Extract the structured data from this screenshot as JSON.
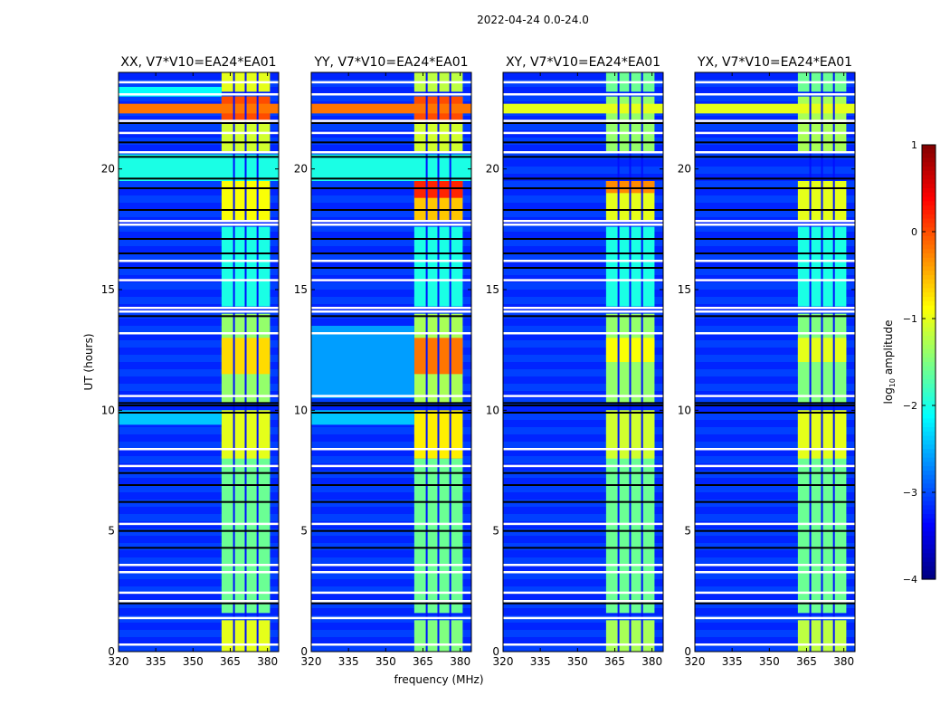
{
  "chart_data": {
    "type": "heatmap",
    "title": "2022-04-24 0.0-24.0",
    "xlabel": "frequency (MHz)",
    "ylabel": "UT (hours)",
    "xlim": [
      320,
      384.5
    ],
    "ylim": [
      0,
      24
    ],
    "xticks": [
      320,
      335,
      350,
      365,
      380
    ],
    "yticks": [
      0,
      5,
      10,
      15,
      20
    ],
    "colorbar": {
      "label_main": "log",
      "label_sub": "10",
      "label_rest": " amplitude",
      "range": [
        -4,
        1
      ],
      "ticks": [
        1,
        0,
        -1,
        -2,
        -3,
        -4
      ],
      "colormap": "jet"
    },
    "background_log_amplitude": -3.2,
    "panels": [
      {
        "title": "XX, V7*V10=EA24*EA01",
        "segments": [
          {
            "t": [
              0,
              1.3
            ],
            "f": [
              361.5,
              381
            ],
            "v": -1.0
          },
          {
            "t": [
              1.6,
              10.0
            ],
            "f": [
              361.5,
              381
            ],
            "v": -1.6
          },
          {
            "t": [
              8.0,
              10.0
            ],
            "f": [
              361.5,
              381
            ],
            "v": -1.0
          },
          {
            "t": [
              10.3,
              14.0
            ],
            "f": [
              361.5,
              381
            ],
            "v": -1.4
          },
          {
            "t": [
              11.5,
              13.0
            ],
            "f": [
              361.5,
              381
            ],
            "v": -0.7
          },
          {
            "t": [
              14.3,
              17.6
            ],
            "f": [
              361.5,
              381
            ],
            "v": -2.0
          },
          {
            "t": [
              17.8,
              19.5
            ],
            "f": [
              361.5,
              381
            ],
            "v": -0.9
          },
          {
            "t": [
              19.5,
              20.6
            ],
            "f": [
              320,
              384.5
            ],
            "v": -2.0
          },
          {
            "t": [
              20.7,
              23.0
            ],
            "f": [
              361.5,
              381
            ],
            "v": -1.1
          },
          {
            "t": [
              22.0,
              23.0
            ],
            "f": [
              361.5,
              381
            ],
            "v": 0.0
          },
          {
            "t": [
              22.3,
              22.7
            ],
            "f": [
              320,
              384.5
            ],
            "v": -0.2
          },
          {
            "t": [
              23.2,
              24.0
            ],
            "f": [
              361.5,
              381
            ],
            "v": -1.0
          },
          {
            "t": [
              9.4,
              10.0
            ],
            "f": [
              320,
              361.5
            ],
            "v": -2.4
          },
          {
            "t": [
              23.0,
              23.4
            ],
            "f": [
              320,
              361.5
            ],
            "v": -2.1
          }
        ]
      },
      {
        "title": "YY, V7*V10=EA24*EA01",
        "segments": [
          {
            "t": [
              0,
              1.3
            ],
            "f": [
              361.5,
              381
            ],
            "v": -1.5
          },
          {
            "t": [
              1.6,
              8.0
            ],
            "f": [
              361.5,
              381
            ],
            "v": -1.6
          },
          {
            "t": [
              8.0,
              10.0
            ],
            "f": [
              361.5,
              381
            ],
            "v": -0.8
          },
          {
            "t": [
              10.3,
              14.0
            ],
            "f": [
              361.5,
              381
            ],
            "v": -1.3
          },
          {
            "t": [
              11.5,
              13.0
            ],
            "f": [
              361.5,
              381
            ],
            "v": -0.2
          },
          {
            "t": [
              14.3,
              17.6
            ],
            "f": [
              361.5,
              381
            ],
            "v": -2.0
          },
          {
            "t": [
              17.8,
              19.5
            ],
            "f": [
              361.5,
              381
            ],
            "v": -0.6
          },
          {
            "t": [
              18.8,
              19.5
            ],
            "f": [
              361.5,
              381
            ],
            "v": 0.2
          },
          {
            "t": [
              19.5,
              20.6
            ],
            "f": [
              320,
              384.5
            ],
            "v": -2.0
          },
          {
            "t": [
              20.7,
              23.0
            ],
            "f": [
              361.5,
              381
            ],
            "v": -1.1
          },
          {
            "t": [
              22.0,
              23.0
            ],
            "f": [
              361.5,
              381
            ],
            "v": 0.0
          },
          {
            "t": [
              22.3,
              22.7
            ],
            "f": [
              320,
              384.5
            ],
            "v": -0.2
          },
          {
            "t": [
              23.2,
              24.0
            ],
            "f": [
              361.5,
              381
            ],
            "v": -1.2
          },
          {
            "t": [
              9.4,
              10.0
            ],
            "f": [
              320,
              361.5
            ],
            "v": -2.4
          },
          {
            "t": [
              10.5,
              13.5
            ],
            "f": [
              320,
              361.5
            ],
            "v": -2.6
          }
        ]
      },
      {
        "title": "XY, V7*V10=EA24*EA01",
        "segments": [
          {
            "t": [
              0,
              1.3
            ],
            "f": [
              361.5,
              381
            ],
            "v": -1.3
          },
          {
            "t": [
              1.6,
              10.0
            ],
            "f": [
              361.5,
              381
            ],
            "v": -1.6
          },
          {
            "t": [
              8.0,
              10.0
            ],
            "f": [
              361.5,
              381
            ],
            "v": -1.1
          },
          {
            "t": [
              10.3,
              14.0
            ],
            "f": [
              361.5,
              381
            ],
            "v": -1.4
          },
          {
            "t": [
              12.0,
              13.0
            ],
            "f": [
              361.5,
              381
            ],
            "v": -0.9
          },
          {
            "t": [
              14.3,
              17.6
            ],
            "f": [
              361.5,
              381
            ],
            "v": -2.0
          },
          {
            "t": [
              17.8,
              19.5
            ],
            "f": [
              361.5,
              381
            ],
            "v": -1.0
          },
          {
            "t": [
              19.0,
              19.5
            ],
            "f": [
              361.5,
              381
            ],
            "v": -0.3
          },
          {
            "t": [
              20.7,
              23.0
            ],
            "f": [
              361.5,
              381
            ],
            "v": -1.4
          },
          {
            "t": [
              22.3,
              22.7
            ],
            "f": [
              320,
              384.5
            ],
            "v": -1.0
          },
          {
            "t": [
              23.2,
              24.0
            ],
            "f": [
              361.5,
              381
            ],
            "v": -1.6
          }
        ]
      },
      {
        "title": "YX, V7*V10=EA24*EA01",
        "segments": [
          {
            "t": [
              0,
              1.3
            ],
            "f": [
              361.5,
              381
            ],
            "v": -1.2
          },
          {
            "t": [
              1.6,
              10.0
            ],
            "f": [
              361.5,
              381
            ],
            "v": -1.6
          },
          {
            "t": [
              8.0,
              10.0
            ],
            "f": [
              361.5,
              381
            ],
            "v": -1.0
          },
          {
            "t": [
              10.3,
              14.0
            ],
            "f": [
              361.5,
              381
            ],
            "v": -1.5
          },
          {
            "t": [
              12.0,
              13.0
            ],
            "f": [
              361.5,
              381
            ],
            "v": -1.0
          },
          {
            "t": [
              14.3,
              17.6
            ],
            "f": [
              361.5,
              381
            ],
            "v": -2.0
          },
          {
            "t": [
              17.8,
              19.5
            ],
            "f": [
              361.5,
              381
            ],
            "v": -1.0
          },
          {
            "t": [
              20.7,
              23.0
            ],
            "f": [
              361.5,
              381
            ],
            "v": -1.3
          },
          {
            "t": [
              22.3,
              22.7
            ],
            "f": [
              320,
              384.5
            ],
            "v": -1.0
          },
          {
            "t": [
              23.2,
              24.0
            ],
            "f": [
              361.5,
              381
            ],
            "v": -1.6
          }
        ]
      }
    ],
    "channel_gaps_mhz": [
      366.5,
      371.2,
      376.0
    ],
    "flagged_times_white": [
      0.3,
      1.4,
      2.1,
      2.45,
      3.3,
      3.6,
      5.3,
      7.7,
      8.4,
      10.6,
      13.2,
      14.1,
      14.25,
      15.4,
      16.2,
      17.7,
      17.85,
      20.7,
      21.5,
      22.0,
      23.1,
      23.6
    ],
    "dark_times_black": [
      2.0,
      4.3,
      5.0,
      6.2,
      6.9,
      7.4,
      9.9,
      10.2,
      10.3,
      13.9,
      15.9,
      16.5,
      17.1,
      18.3,
      19.2,
      19.6,
      20.5,
      21.1,
      21.9
    ]
  }
}
